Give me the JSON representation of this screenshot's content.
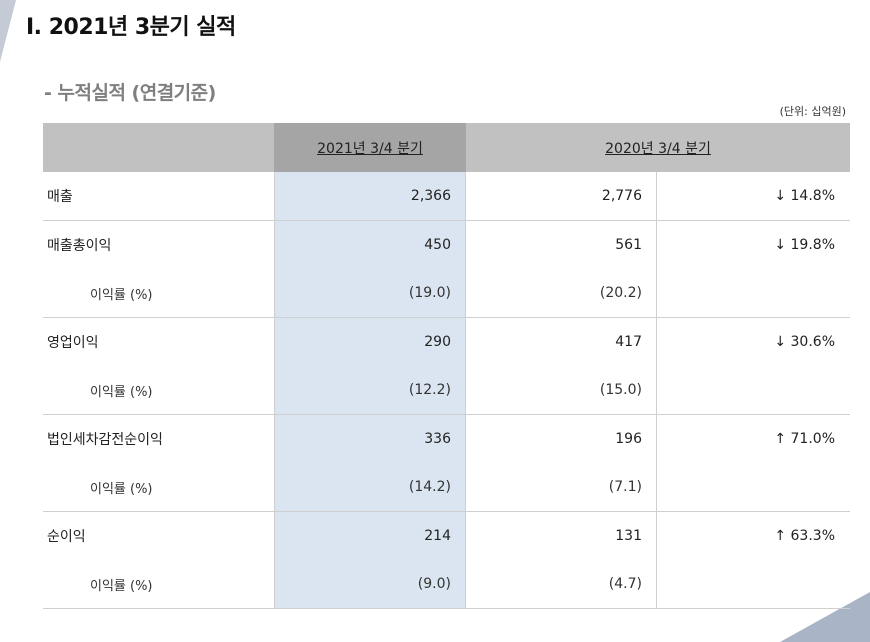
{
  "title": "I.  2021년 3분기 실적",
  "subtitle": "- 누적실적 (연결기준)",
  "unit": "(단위: 십억원)",
  "header": {
    "col1": "2021년 3/4 분기",
    "col2": "2020년 3/4 분기"
  },
  "rows": [
    {
      "label": "매출",
      "cur": "2,366",
      "prev": "2,776",
      "change": "↓ 14.8%",
      "sub": null
    },
    {
      "label": "매출총이익",
      "cur": "450",
      "prev": "561",
      "change": "↓ 19.8%",
      "sub": {
        "label": "이익률 (%)",
        "cur": "(19.0)",
        "prev": "(20.2)"
      }
    },
    {
      "label": "영업이익",
      "cur": "290",
      "prev": "417",
      "change": "↓ 30.6%",
      "sub": {
        "label": "이익률 (%)",
        "cur": "(12.2)",
        "prev": "(15.0)"
      }
    },
    {
      "label": "법인세차감전순이익",
      "cur": "336",
      "prev": "196",
      "change": "↑ 71.0%",
      "sub": {
        "label": "이익률 (%)",
        "cur": "(14.2)",
        "prev": "(7.1)"
      }
    },
    {
      "label": "순이익",
      "cur": "214",
      "prev": "131",
      "change": "↑ 63.3%",
      "sub": {
        "label": "이익률 (%)",
        "cur": "(9.0)",
        "prev": "(4.7)"
      }
    }
  ],
  "colors": {
    "highlight": "#dbe5f1",
    "header": "#c1c1c1",
    "header_dark": "#a5a5a5"
  }
}
